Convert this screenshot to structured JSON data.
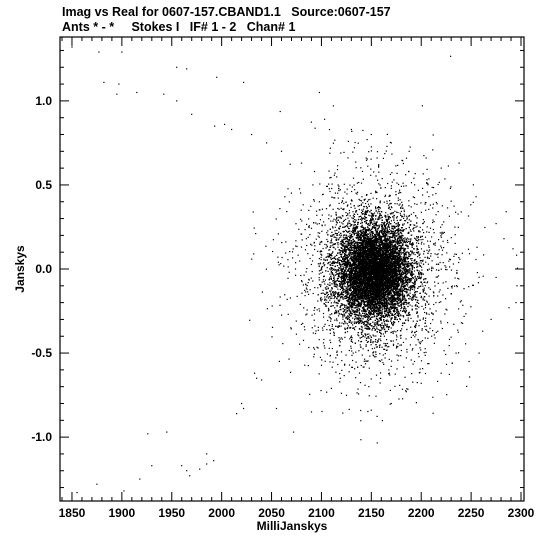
{
  "header": {
    "line1": "Imag vs Real for 0607-157.CBAND1.1   Source:0607-157",
    "line2": "Ants * - *     Stokes I   IF# 1 - 2   Chan# 1"
  },
  "chart_data": {
    "type": "scatter",
    "xlabel": "MilliJanskys",
    "ylabel": "Janskys",
    "xlim": [
      1838,
      2303
    ],
    "ylim": [
      -1.38,
      1.38
    ],
    "xticks": [
      1850,
      1900,
      1950,
      2000,
      2050,
      2100,
      2150,
      2200,
      2250,
      2300
    ],
    "xtick_labels": [
      "1850",
      "1900",
      "1950",
      "2000",
      "2050",
      "2100",
      "2150",
      "2200",
      "2250",
      "2300"
    ],
    "yticks": [
      -1.0,
      -0.5,
      0.0,
      0.5,
      1.0
    ],
    "ytick_labels": [
      "-1.0",
      "-0.5",
      "0.0",
      "0.5",
      "1.0"
    ],
    "grid": false,
    "marker_color": "#000000",
    "cluster": {
      "center": [
        2153,
        -0.02
      ],
      "spread": [
        18,
        0.14
      ],
      "approx_points": 14000
    },
    "halo": {
      "center": [
        2153,
        -0.02
      ],
      "spread": [
        40,
        0.3
      ],
      "approx_points": 2500
    },
    "outliers": [
      [
        1850,
        1.32
      ],
      [
        1877,
        1.29
      ],
      [
        1900,
        1.29
      ],
      [
        1955,
        1.2
      ],
      [
        1965,
        1.19
      ],
      [
        1995,
        1.14
      ],
      [
        1882,
        1.11
      ],
      [
        1897,
        1.1
      ],
      [
        1895,
        1.04
      ],
      [
        1915,
        1.05
      ],
      [
        1942,
        1.04
      ],
      [
        1955,
        1.0
      ],
      [
        1970,
        0.92
      ],
      [
        1993,
        0.85
      ],
      [
        2003,
        0.86
      ],
      [
        2010,
        0.83
      ],
      [
        2022,
        1.11
      ],
      [
        2030,
        0.8
      ],
      [
        2045,
        0.75
      ],
      [
        2060,
        0.7
      ],
      [
        2080,
        0.63
      ],
      [
        2093,
        0.58
      ],
      [
        2098,
        1.05
      ],
      [
        2112,
        0.97
      ],
      [
        2130,
        0.83
      ],
      [
        2150,
        0.8
      ],
      [
        2170,
        0.75
      ],
      [
        2188,
        0.7
      ],
      [
        2205,
        0.66
      ],
      [
        2220,
        0.6
      ],
      [
        2238,
        0.63
      ],
      [
        2255,
        0.43
      ],
      [
        2275,
        0.27
      ],
      [
        2283,
        0.18
      ],
      [
        2292,
        0.12
      ],
      [
        2296,
        -0.1
      ],
      [
        2295,
        -0.2
      ],
      [
        2288,
        -0.23
      ],
      [
        2275,
        -0.05
      ],
      [
        2270,
        -0.3
      ],
      [
        2258,
        -0.5
      ],
      [
        2248,
        -0.55
      ],
      [
        2235,
        -0.5
      ],
      [
        2220,
        -0.62
      ],
      [
        2200,
        -0.68
      ],
      [
        2185,
        -0.73
      ],
      [
        2170,
        -0.8
      ],
      [
        2150,
        -0.84
      ],
      [
        2040,
        -0.66
      ],
      [
        2035,
        -0.65
      ],
      [
        2033,
        -0.62
      ],
      [
        2020,
        -0.8
      ],
      [
        2015,
        -0.86
      ],
      [
        2022,
        -0.83
      ],
      [
        2055,
        -0.83
      ],
      [
        2072,
        -0.97
      ],
      [
        2090,
        -0.85
      ],
      [
        2110,
        -0.71
      ],
      [
        1855,
        -1.33
      ],
      [
        1875,
        -1.28
      ],
      [
        1902,
        -1.32
      ],
      [
        1918,
        -1.25
      ],
      [
        1930,
        -1.17
      ],
      [
        1926,
        -0.98
      ],
      [
        1945,
        -0.97
      ],
      [
        1960,
        -1.17
      ],
      [
        1965,
        -1.2
      ],
      [
        1968,
        -1.23
      ],
      [
        1978,
        -1.19
      ],
      [
        1985,
        -1.16
      ],
      [
        1985,
        -1.1
      ],
      [
        1992,
        -1.14
      ]
    ]
  }
}
